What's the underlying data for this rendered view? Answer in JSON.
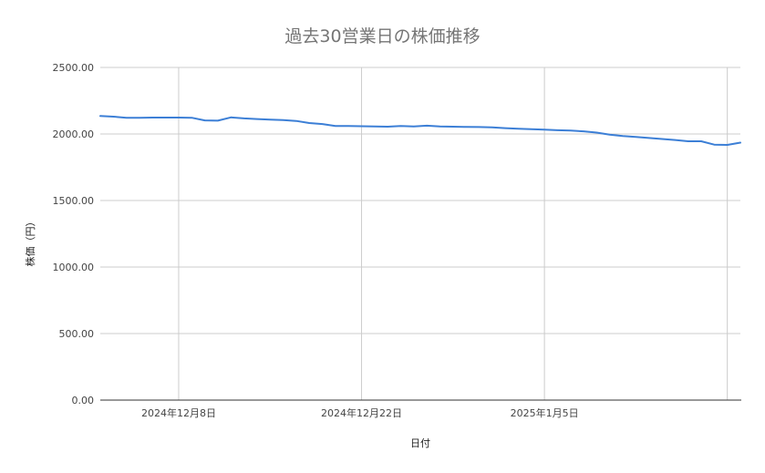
{
  "chart_data": {
    "type": "line",
    "title": "過去30営業日の株価推移",
    "xlabel": "日付",
    "ylabel": "株価（円）",
    "ylim": [
      0,
      2500
    ],
    "yticks": [
      0,
      500,
      1000,
      1500,
      2000,
      2500
    ],
    "ytick_labels": [
      "0.00",
      "500.00",
      "1000.00",
      "1500.00",
      "2000.00",
      "2500.00"
    ],
    "xlim": [
      "2024-12-02",
      "2025-01-20"
    ],
    "xticks": [
      "2024-12-08",
      "2024-12-22",
      "2025-01-05",
      "2025-01-19"
    ],
    "xtick_labels": [
      "2024年12月8日",
      "2024年12月22日",
      "2025年1月5日",
      ""
    ],
    "grid": true,
    "line_color": "#3c7fd6",
    "x": [
      "2024-12-02",
      "2024-12-03",
      "2024-12-04",
      "2024-12-05",
      "2024-12-06",
      "2024-12-07",
      "2024-12-08",
      "2024-12-09",
      "2024-12-10",
      "2024-12-11",
      "2024-12-12",
      "2024-12-13",
      "2024-12-14",
      "2024-12-15",
      "2024-12-16",
      "2024-12-17",
      "2024-12-18",
      "2024-12-19",
      "2024-12-20",
      "2024-12-21",
      "2024-12-22",
      "2024-12-23",
      "2024-12-24",
      "2024-12-25",
      "2024-12-26",
      "2024-12-27",
      "2024-12-28",
      "2024-12-29",
      "2024-12-30",
      "2024-12-31",
      "2025-01-01",
      "2025-01-02",
      "2025-01-03",
      "2025-01-04",
      "2025-01-05",
      "2025-01-06",
      "2025-01-07",
      "2025-01-08",
      "2025-01-09",
      "2025-01-10",
      "2025-01-11",
      "2025-01-12",
      "2025-01-13",
      "2025-01-14",
      "2025-01-15",
      "2025-01-16",
      "2025-01-17",
      "2025-01-18",
      "2025-01-19",
      "2025-01-20"
    ],
    "series": [
      {
        "values": [
          2135,
          2130,
          2122,
          2122,
          2123,
          2123,
          2123,
          2122,
          2102,
          2100,
          2125,
          2117,
          2112,
          2108,
          2104,
          2098,
          2082,
          2075,
          2060,
          2060,
          2058,
          2057,
          2055,
          2060,
          2057,
          2062,
          2057,
          2055,
          2053,
          2052,
          2049,
          2044,
          2040,
          2036,
          2032,
          2028,
          2025,
          2020,
          2010,
          1995,
          1985,
          1978,
          1970,
          1962,
          1955,
          1945,
          1945,
          1920,
          1918,
          1935
        ]
      }
    ]
  }
}
